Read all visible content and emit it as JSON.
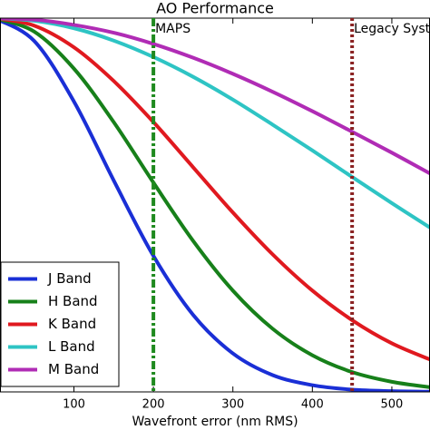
{
  "chart_data": {
    "type": "line",
    "title": "AO Performance",
    "x_label": "Wavefront error (nm RMS)",
    "x": [
      0,
      50,
      100,
      150,
      200,
      250,
      300,
      350,
      400,
      450,
      500,
      550
    ],
    "series": [
      {
        "name": "J Band",
        "color": "#1a2fd6",
        "values": [
          1,
          0.939,
          0.777,
          0.566,
          0.364,
          0.206,
          0.103,
          0.045,
          0.018,
          0.006,
          0.002,
          0.0005
        ]
      },
      {
        "name": "H Band",
        "color": "#17801a",
        "values": [
          1,
          0.964,
          0.865,
          0.722,
          0.56,
          0.404,
          0.271,
          0.169,
          0.098,
          0.053,
          0.027,
          0.012
        ]
      },
      {
        "name": "K Band",
        "color": "#e0191f",
        "values": [
          1,
          0.98,
          0.922,
          0.832,
          0.722,
          0.601,
          0.48,
          0.368,
          0.271,
          0.192,
          0.13,
          0.085
        ]
      },
      {
        "name": "L Band",
        "color": "#2ec4c4",
        "values": [
          1,
          0.993,
          0.973,
          0.94,
          0.896,
          0.843,
          0.782,
          0.715,
          0.646,
          0.575,
          0.505,
          0.437
        ]
      },
      {
        "name": "M Band",
        "color": "#b02cb5",
        "values": [
          1,
          0.996,
          0.982,
          0.961,
          0.931,
          0.894,
          0.851,
          0.803,
          0.751,
          0.696,
          0.64,
          0.582
        ]
      }
    ],
    "vlines": [
      {
        "x": 200,
        "label": "MAPS",
        "color": "#1f8a1f",
        "style": "dashdot"
      },
      {
        "x": 450,
        "label": "Legacy System",
        "color": "#8b2222",
        "style": "dotted"
      }
    ],
    "xlim": [
      7,
      548
    ],
    "ylim": [
      0,
      1
    ],
    "xticks": [
      100,
      200,
      300,
      400,
      500
    ],
    "grid": false,
    "legend": "lower left"
  }
}
